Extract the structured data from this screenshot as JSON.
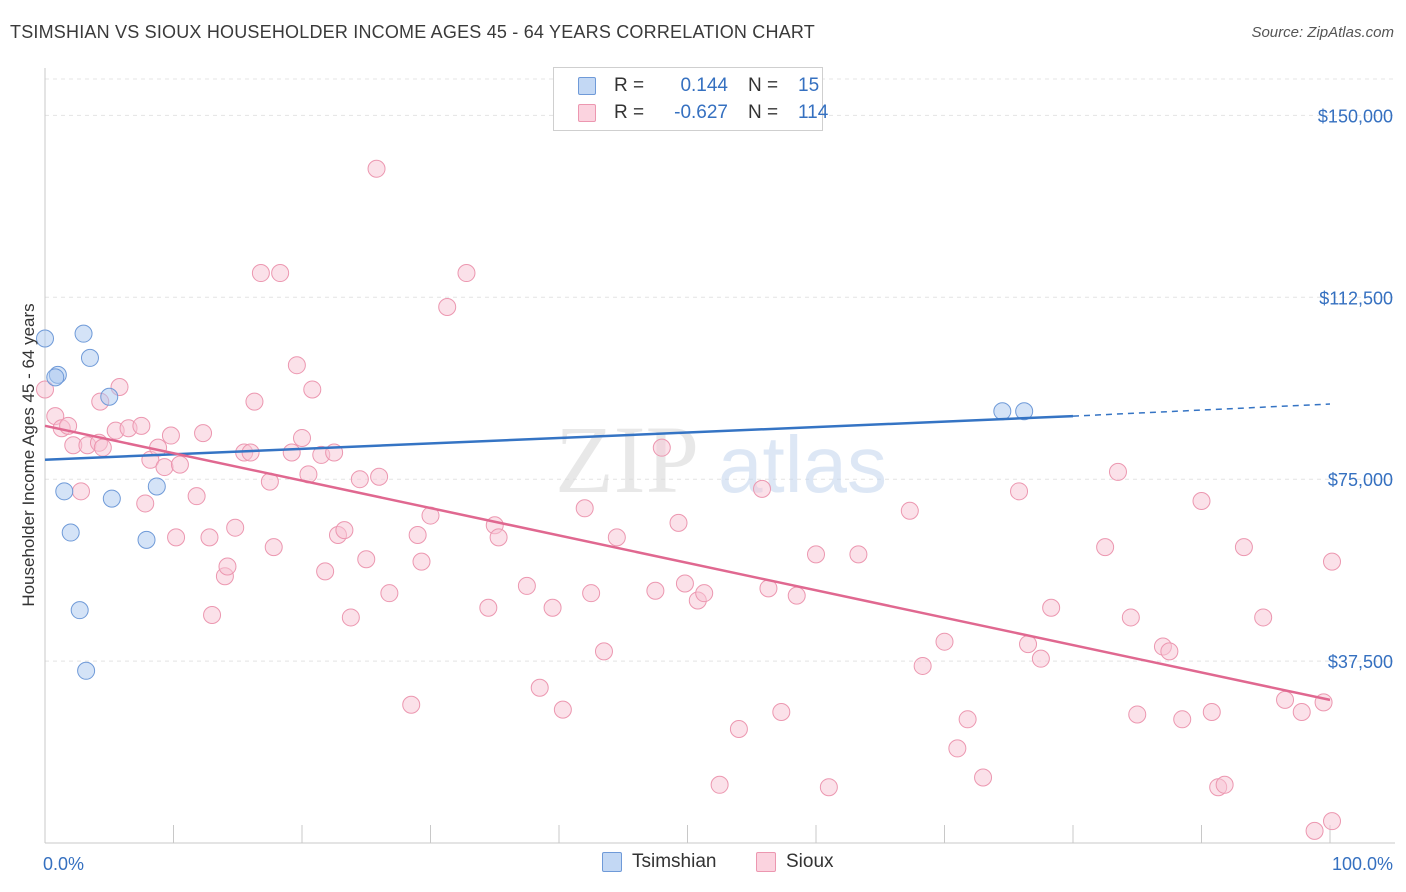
{
  "title": "TSIMSHIAN VS SIOUX HOUSEHOLDER INCOME AGES 45 - 64 YEARS CORRELATION CHART",
  "source": "Source: ZipAtlas.com",
  "watermark": {
    "zip": "ZIP",
    "atlas": "atlas"
  },
  "legend": {
    "r_label": "R =",
    "n_label": "N =",
    "rows": [
      {
        "r": "0.144",
        "n": "15"
      },
      {
        "r": "-0.627",
        "n": "114"
      }
    ]
  },
  "chart_data": {
    "type": "scatter",
    "title": "TSIMSHIAN VS SIOUX HOUSEHOLDER INCOME AGES 45 - 64 YEARS CORRELATION CHART",
    "xlabel": "",
    "ylabel": "Householder Income Ages 45 - 64 years",
    "xlim": [
      0,
      100
    ],
    "ylim": [
      0,
      157500
    ],
    "x_tick_labels": [
      "0.0%",
      "100.0%"
    ],
    "y_ticks": [
      37500,
      75000,
      112500,
      150000
    ],
    "y_tick_labels": [
      "$37,500",
      "$75,000",
      "$112,500",
      "$150,000"
    ],
    "grid": true,
    "legend_position": "top-center",
    "series": [
      {
        "name": "Tsimshian",
        "color": "#a9c8f0",
        "edge": "#6f9ad8",
        "line_color": "#3574c4",
        "r": 0.144,
        "n": 15,
        "trend": {
          "x0": 0,
          "y0": 79000,
          "x1": 80,
          "y1": 88000,
          "dash_to": 100,
          "dash_y": 90500
        },
        "points": [
          [
            0,
            104000
          ],
          [
            1,
            96500
          ],
          [
            3,
            105000
          ],
          [
            3.5,
            100000
          ],
          [
            5,
            92000
          ],
          [
            1.5,
            72500
          ],
          [
            2,
            64000
          ],
          [
            5.2,
            71000
          ],
          [
            8.7,
            73500
          ],
          [
            7.9,
            62500
          ],
          [
            2.7,
            48000
          ],
          [
            3.2,
            35500
          ],
          [
            74.5,
            89000
          ],
          [
            76.2,
            89000
          ],
          [
            0.8,
            96000
          ]
        ]
      },
      {
        "name": "Sioux",
        "color": "#f8c4d4",
        "edge": "#ec97b0",
        "line_color": "#e06890",
        "r": -0.627,
        "n": 114,
        "trend": {
          "x0": 0,
          "y0": 86000,
          "x1": 100,
          "y1": 29500
        },
        "points": [
          [
            0,
            93500
          ],
          [
            0.8,
            88000
          ],
          [
            1.3,
            85500
          ],
          [
            1.8,
            86000
          ],
          [
            2.2,
            82000
          ],
          [
            2.8,
            72500
          ],
          [
            3.3,
            82000
          ],
          [
            4.2,
            82500
          ],
          [
            4.5,
            81500
          ],
          [
            4.3,
            91000
          ],
          [
            5.5,
            85000
          ],
          [
            5.8,
            94000
          ],
          [
            6.5,
            85500
          ],
          [
            7.5,
            86000
          ],
          [
            8.2,
            79000
          ],
          [
            7.8,
            70000
          ],
          [
            8.8,
            81500
          ],
          [
            9.3,
            77500
          ],
          [
            9.8,
            84000
          ],
          [
            10.5,
            78000
          ],
          [
            10.2,
            63000
          ],
          [
            11.8,
            71500
          ],
          [
            12.3,
            84500
          ],
          [
            12.8,
            63000
          ],
          [
            13,
            47000
          ],
          [
            14,
            55000
          ],
          [
            14.2,
            57000
          ],
          [
            14.8,
            65000
          ],
          [
            15.5,
            80500
          ],
          [
            16,
            80500
          ],
          [
            16.3,
            91000
          ],
          [
            16.8,
            117500
          ],
          [
            17.5,
            74500
          ],
          [
            17.8,
            61000
          ],
          [
            18.3,
            117500
          ],
          [
            19.2,
            80500
          ],
          [
            19.6,
            98500
          ],
          [
            20,
            83500
          ],
          [
            20.5,
            76000
          ],
          [
            20.8,
            93500
          ],
          [
            21.5,
            80000
          ],
          [
            21.8,
            56000
          ],
          [
            22.5,
            80500
          ],
          [
            22.8,
            63500
          ],
          [
            23.3,
            64500
          ],
          [
            23.8,
            46500
          ],
          [
            24.5,
            75000
          ],
          [
            25,
            58500
          ],
          [
            25.8,
            139000
          ],
          [
            26,
            75500
          ],
          [
            26.8,
            51500
          ],
          [
            28.5,
            28500
          ],
          [
            29,
            63500
          ],
          [
            29.3,
            58000
          ],
          [
            30,
            67500
          ],
          [
            31.3,
            110500
          ],
          [
            32.8,
            117500
          ],
          [
            34.5,
            48500
          ],
          [
            35,
            65500
          ],
          [
            35.3,
            63000
          ],
          [
            37.5,
            53000
          ],
          [
            38.5,
            32000
          ],
          [
            39.5,
            48500
          ],
          [
            40.3,
            27500
          ],
          [
            42,
            69000
          ],
          [
            42.5,
            51500
          ],
          [
            43.5,
            39500
          ],
          [
            44.5,
            63000
          ],
          [
            47.5,
            52000
          ],
          [
            48,
            81500
          ],
          [
            49.3,
            66000
          ],
          [
            49.8,
            53500
          ],
          [
            50.8,
            50000
          ],
          [
            51.3,
            51500
          ],
          [
            52.5,
            12000
          ],
          [
            54,
            23500
          ],
          [
            55.8,
            73000
          ],
          [
            56.3,
            52500
          ],
          [
            57.3,
            27000
          ],
          [
            58.5,
            51000
          ],
          [
            60,
            59500
          ],
          [
            61,
            11500
          ],
          [
            63.3,
            59500
          ],
          [
            67.3,
            68500
          ],
          [
            68.3,
            36500
          ],
          [
            70,
            41500
          ],
          [
            71,
            19500
          ],
          [
            71.8,
            25500
          ],
          [
            73,
            13500
          ],
          [
            75.8,
            72500
          ],
          [
            76.5,
            41000
          ],
          [
            77.5,
            38000
          ],
          [
            78.3,
            48500
          ],
          [
            82.5,
            61000
          ],
          [
            83.5,
            76500
          ],
          [
            84.5,
            46500
          ],
          [
            85,
            26500
          ],
          [
            87,
            40500
          ],
          [
            87.5,
            39500
          ],
          [
            88.5,
            25500
          ],
          [
            90,
            70500
          ],
          [
            90.8,
            27000
          ],
          [
            91.3,
            11500
          ],
          [
            91.8,
            12000
          ],
          [
            93.3,
            61000
          ],
          [
            94.8,
            46500
          ],
          [
            96.5,
            29500
          ],
          [
            97.8,
            27000
          ],
          [
            98.8,
            2500
          ],
          [
            100.5,
            58000
          ],
          [
            100.3,
            4500
          ],
          [
            99.5,
            29000
          ]
        ]
      }
    ]
  }
}
